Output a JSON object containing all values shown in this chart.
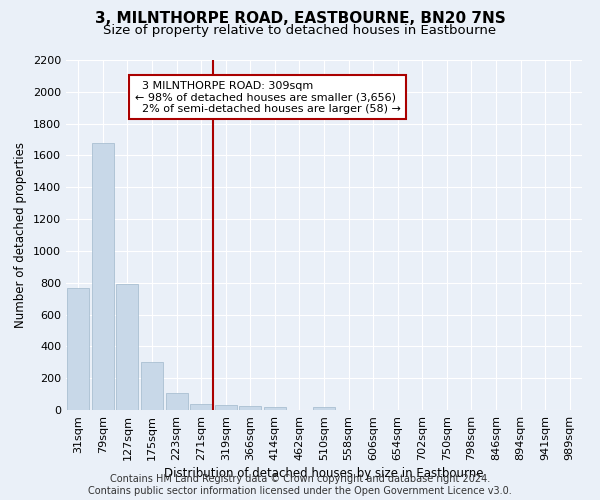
{
  "title": "3, MILNTHORPE ROAD, EASTBOURNE, BN20 7NS",
  "subtitle": "Size of property relative to detached houses in Eastbourne",
  "xlabel": "Distribution of detached houses by size in Eastbourne",
  "ylabel": "Number of detached properties",
  "categories": [
    "31sqm",
    "79sqm",
    "127sqm",
    "175sqm",
    "223sqm",
    "271sqm",
    "319sqm",
    "366sqm",
    "414sqm",
    "462sqm",
    "510sqm",
    "558sqm",
    "606sqm",
    "654sqm",
    "702sqm",
    "750sqm",
    "798sqm",
    "846sqm",
    "894sqm",
    "941sqm",
    "989sqm"
  ],
  "values": [
    770,
    1680,
    795,
    300,
    110,
    40,
    33,
    28,
    20,
    0,
    20,
    0,
    0,
    0,
    0,
    0,
    0,
    0,
    0,
    0,
    0
  ],
  "bar_color": "#c8d8e8",
  "bar_edge_color": "#a0b8cc",
  "vline_x_index": 5.5,
  "vline_color": "#aa0000",
  "annotation_text": "  3 MILNTHORPE ROAD: 309sqm\n← 98% of detached houses are smaller (3,656)\n  2% of semi-detached houses are larger (58) →",
  "annotation_box_facecolor": "#ffffff",
  "annotation_box_edgecolor": "#aa0000",
  "ylim": [
    0,
    2200
  ],
  "yticks": [
    0,
    200,
    400,
    600,
    800,
    1000,
    1200,
    1400,
    1600,
    1800,
    2000,
    2200
  ],
  "bg_color": "#eaf0f8",
  "plot_bg_color": "#eaf0f8",
  "footer": "Contains HM Land Registry data © Crown copyright and database right 2024.\nContains public sector information licensed under the Open Government Licence v3.0.",
  "title_fontsize": 11,
  "subtitle_fontsize": 9.5,
  "xlabel_fontsize": 8.5,
  "ylabel_fontsize": 8.5,
  "tick_fontsize": 8,
  "annotation_fontsize": 8,
  "footer_fontsize": 7
}
